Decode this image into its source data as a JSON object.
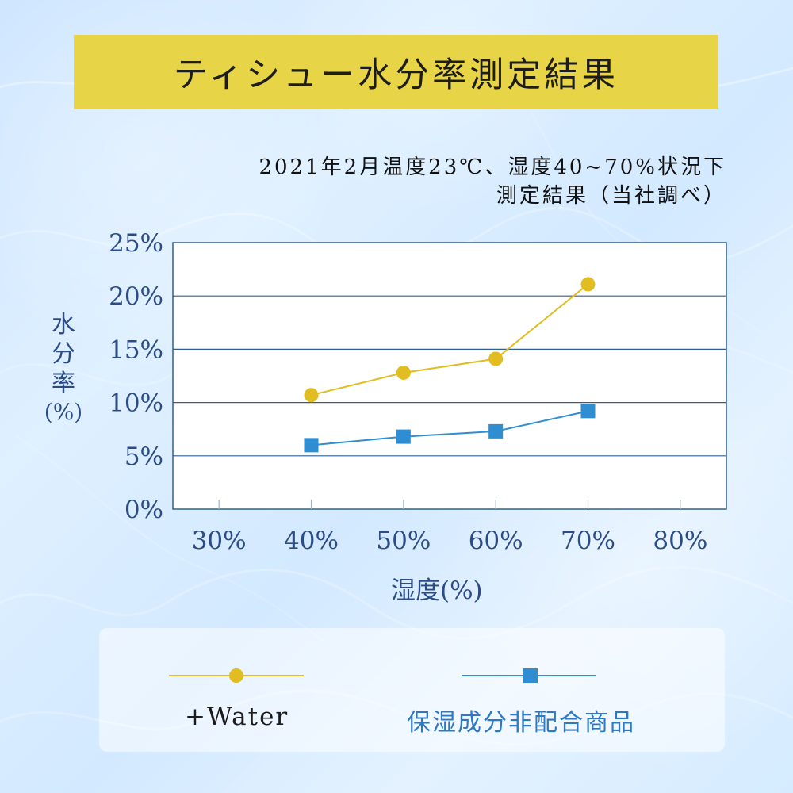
{
  "header": {
    "title": "ティシュー水分率測定結果"
  },
  "subtitle": {
    "line1": "2021年2月温度23℃、湿度40~70%状況下",
    "line2": "測定結果（当社調べ）"
  },
  "axes": {
    "y_title_chars": [
      "水",
      "分",
      "率"
    ],
    "y_title_unit": "(%)",
    "x_title": "湿度(%)"
  },
  "legend": {
    "water_label": "+Water",
    "product_label": "保湿成分非配合商品"
  },
  "colors": {
    "water": "#e1bd22",
    "product": "#2f8ed1",
    "axis_text": "#2b4c86",
    "grid": "#2f5f93",
    "banner": "#e8d447"
  },
  "chart_data": {
    "type": "line",
    "title": "ティシュー水分率測定結果",
    "subtitle": "2021年2月温度23℃、湿度40~70%状況下 測定結果（当社調べ）",
    "xlabel": "湿度(%)",
    "ylabel": "水分率(%)",
    "x_ticks": [
      30,
      40,
      50,
      60,
      70,
      80
    ],
    "x_tick_labels": [
      "30%",
      "40%",
      "50%",
      "60%",
      "70%",
      "80%"
    ],
    "y_ticks": [
      0,
      5,
      10,
      15,
      20,
      25
    ],
    "y_tick_labels": [
      "0%",
      "5%",
      "10%",
      "15%",
      "20%",
      "25%"
    ],
    "xlim": [
      25,
      85
    ],
    "ylim": [
      0,
      25
    ],
    "grid": "horizontal",
    "legend_position": "bottom",
    "series": [
      {
        "name": "+Water",
        "marker": "circle",
        "x": [
          40,
          50,
          60,
          70
        ],
        "values": [
          10.7,
          12.8,
          14.1,
          21.1
        ]
      },
      {
        "name": "保湿成分非配合商品",
        "marker": "square",
        "x": [
          40,
          50,
          60,
          70
        ],
        "values": [
          6.0,
          6.8,
          7.3,
          9.2
        ]
      }
    ]
  }
}
